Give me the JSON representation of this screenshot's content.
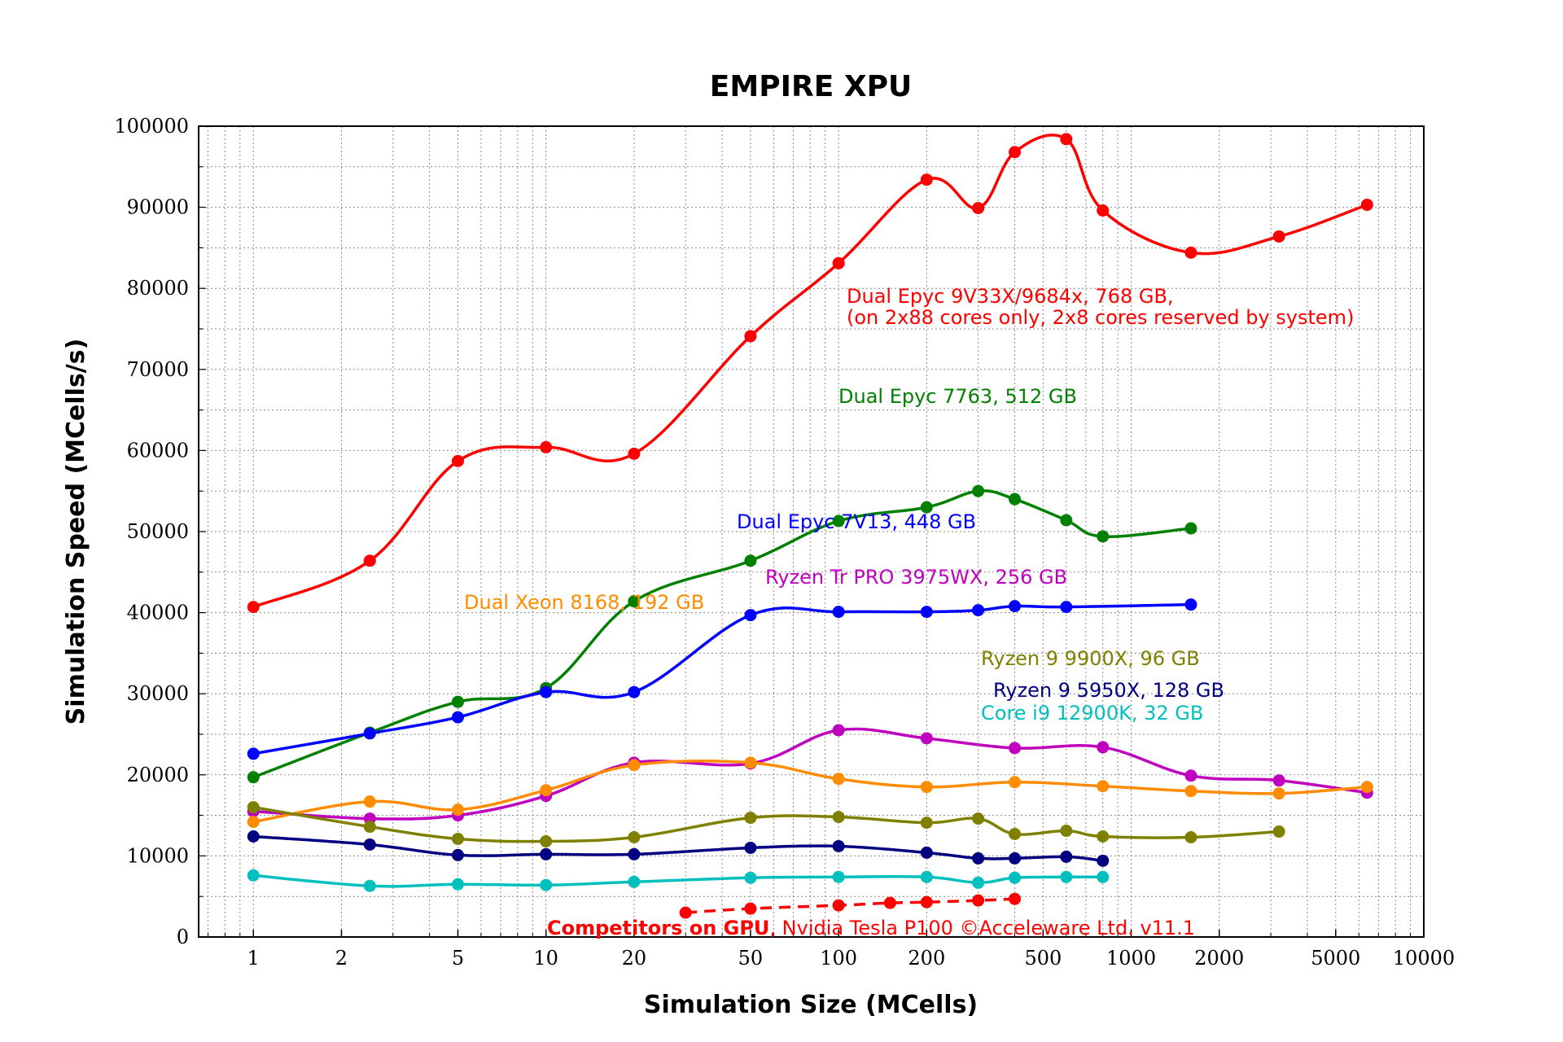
{
  "chart_data": {
    "type": "line",
    "title": "EMPIRE XPU",
    "xlabel": "Simulation Size (MCells)",
    "ylabel": "Simulation Speed (MCells/s)",
    "xscale": "log",
    "xlim": [
      0.65,
      10000
    ],
    "ylim": [
      0,
      100000
    ],
    "grid": true,
    "x_ticks": [
      1,
      2,
      5,
      10,
      20,
      50,
      100,
      200,
      500,
      1000,
      2000,
      5000,
      10000
    ],
    "x_tick_labels": [
      "1",
      "2",
      "5",
      "10",
      "20",
      "50",
      "100",
      "200",
      "500",
      "1000",
      "2000",
      "5000",
      "10000"
    ],
    "y_ticks": [
      0,
      10000,
      20000,
      30000,
      40000,
      50000,
      60000,
      70000,
      80000,
      90000,
      100000
    ],
    "y_tick_labels": [
      "0",
      "10000",
      "20000",
      "30000",
      "40000",
      "50000",
      "60000",
      "70000",
      "80000",
      "90000",
      "100000"
    ],
    "series": [
      {
        "color": "#ff0000",
        "x": [
          1,
          2.5,
          5,
          10,
          20,
          50,
          100,
          200,
          300,
          400,
          600,
          800,
          1600,
          3200,
          6400
        ],
        "y": [
          40700,
          46400,
          58700,
          60400,
          59600,
          74100,
          83100,
          93400,
          89900,
          96800,
          98400,
          89600,
          84400,
          86400,
          90300
        ]
      },
      {
        "color": "#008000",
        "x": [
          1,
          2.5,
          5,
          10,
          20,
          50,
          100,
          200,
          300,
          400,
          600,
          800,
          1600
        ],
        "y": [
          19700,
          25200,
          29000,
          30700,
          41400,
          46400,
          51300,
          53000,
          55000,
          54000,
          51400,
          49400,
          50400
        ]
      },
      {
        "color": "#0000ff",
        "x": [
          1,
          2.5,
          5,
          10,
          20,
          50,
          100,
          200,
          300,
          400,
          600,
          1600
        ],
        "y": [
          22600,
          25100,
          27100,
          30200,
          30200,
          39700,
          40100,
          40100,
          40300,
          40800,
          40700,
          41000
        ]
      },
      {
        "color": "#bf00bf",
        "x": [
          1,
          2.5,
          5,
          10,
          20,
          50,
          100,
          200,
          400,
          800,
          1600,
          3200,
          6400
        ],
        "y": [
          15500,
          14600,
          15000,
          17400,
          21500,
          21400,
          25500,
          24500,
          23300,
          23400,
          19900,
          19300,
          17800
        ]
      },
      {
        "color": "#ff8c00",
        "x": [
          1,
          2.5,
          5,
          10,
          20,
          50,
          100,
          200,
          400,
          800,
          1600,
          3200,
          6400
        ],
        "y": [
          14200,
          16700,
          15700,
          18100,
          21200,
          21500,
          19500,
          18500,
          19100,
          18600,
          18000,
          17700,
          18500
        ]
      },
      {
        "color": "#808000",
        "x": [
          1,
          2.5,
          5,
          10,
          20,
          50,
          100,
          200,
          300,
          400,
          600,
          800,
          1600,
          3200
        ],
        "y": [
          16000,
          13600,
          12100,
          11800,
          12300,
          14700,
          14800,
          14100,
          14600,
          12700,
          13100,
          12400,
          12300,
          13000
        ]
      },
      {
        "color": "#000080",
        "x": [
          1,
          2.5,
          5,
          10,
          20,
          50,
          100,
          200,
          300,
          400,
          600,
          800
        ],
        "y": [
          12400,
          11400,
          10100,
          10200,
          10200,
          11000,
          11200,
          10400,
          9700,
          9700,
          9900,
          9400
        ]
      },
      {
        "color": "#00bfbf",
        "x": [
          1,
          2.5,
          5,
          10,
          20,
          50,
          100,
          200,
          300,
          400,
          600,
          800
        ],
        "y": [
          7600,
          6300,
          6500,
          6400,
          6800,
          7300,
          7400,
          7400,
          6700,
          7300,
          7400,
          7400
        ]
      },
      {
        "color": "#ff0000",
        "dashed": true,
        "x": [
          30,
          50,
          100,
          150,
          200,
          300,
          400
        ],
        "y": [
          3000,
          3500,
          3900,
          4200,
          4300,
          4500,
          4700
        ]
      }
    ],
    "annotations": [
      {
        "text": "Dual Epyc 9V33X/9684x, 768 GB,",
        "color": "#ff0000",
        "x": 1040,
        "y": 372
      },
      {
        "text": "(on 2x88 cores only, 2x8 cores reserved by system)",
        "color": "#ff0000",
        "x": 1040,
        "y": 398
      },
      {
        "text": "Dual Epyc 7763, 512 GB",
        "color": "#008000",
        "x": 1030,
        "y": 495
      },
      {
        "text": "Dual Epyc 7V13, 448 GB",
        "color": "#0000ff",
        "x": 905,
        "y": 649
      },
      {
        "text": "Ryzen Tr PRO 3975WX, 256 GB",
        "color": "#bf00bf",
        "x": 940,
        "y": 717
      },
      {
        "text": "Dual Xeon 8168, 192 GB",
        "color": "#ff8c00",
        "x": 570,
        "y": 748
      },
      {
        "text": "Ryzen 9 9900X, 96 GB",
        "color": "#808000",
        "x": 1205,
        "y": 817
      },
      {
        "text": "Ryzen 9 5950X, 128 GB",
        "color": "#000080",
        "x": 1220,
        "y": 856
      },
      {
        "text": "Core i9 12900K, 32 GB",
        "color": "#00bfbf",
        "x": 1205,
        "y": 884
      }
    ],
    "gpu_note": {
      "bold": "Competitors on GPU",
      "rest": ", Nvidia Tesla P100 ©Acceleware Ltd. v11.1",
      "color": "#ff0000"
    }
  }
}
